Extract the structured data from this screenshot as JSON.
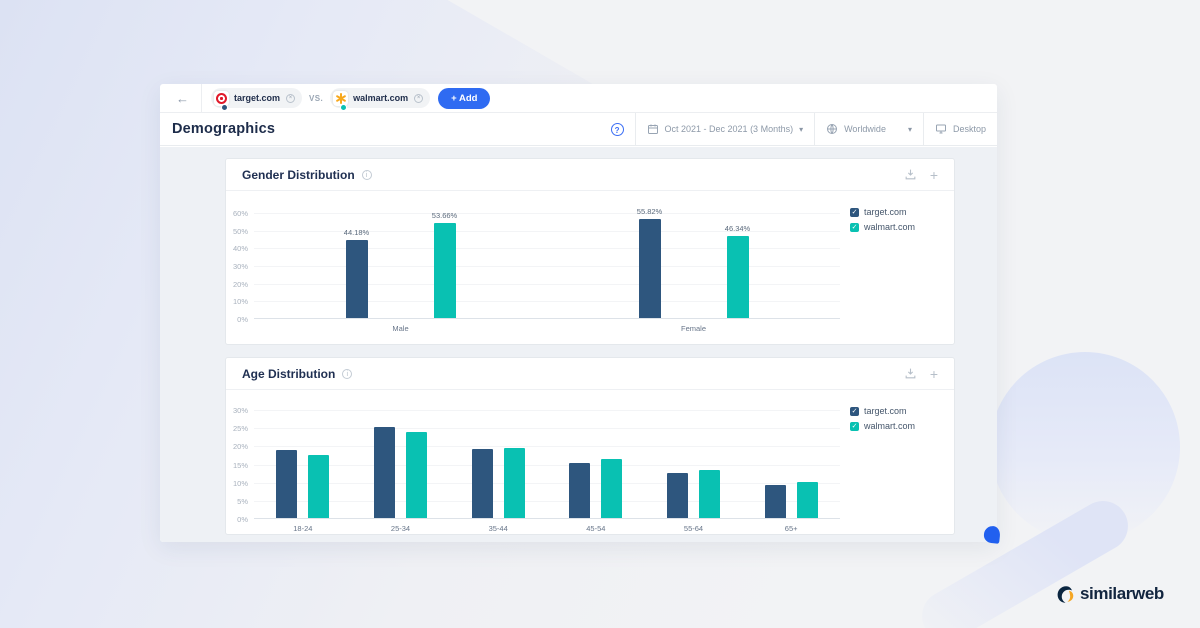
{
  "icons": {
    "back": "←",
    "chevron": "▾",
    "help": "?",
    "info": "i",
    "plus": "+",
    "check": "✓",
    "close": "×"
  },
  "colors": {
    "accent_blue": "#2f6bf2",
    "target_navy": "#2e567e",
    "walmart_teal": "#09c1b2"
  },
  "topbar": {
    "vs_label": "VS.",
    "add_button_label": "+ Add",
    "competitors": [
      {
        "name": "target.com",
        "brand": "target",
        "dot_color": "#2e567e"
      },
      {
        "name": "walmart.com",
        "brand": "walmart",
        "dot_color": "#09c1b2"
      }
    ]
  },
  "header": {
    "title": "Demographics",
    "filters": {
      "date_range": "Oct 2021 - Dec 2021 (3 Months)",
      "region": "Worldwide",
      "device": "Desktop"
    }
  },
  "chart_data": [
    {
      "id": "gender",
      "type": "bar",
      "title": "Gender Distribution",
      "categories": [
        "Male",
        "Female"
      ],
      "series": [
        {
          "name": "target.com",
          "color": "#2e567e",
          "values": [
            44.18,
            55.82
          ],
          "labels": [
            "44.18%",
            "55.82%"
          ]
        },
        {
          "name": "walmart.com",
          "color": "#09c1b2",
          "values": [
            53.66,
            46.34
          ],
          "labels": [
            "53.66%",
            "46.34%"
          ]
        }
      ],
      "ylim": [
        0,
        60
      ],
      "ytick_step": 10,
      "show_value_labels": true,
      "grid": true,
      "legend_position": "right"
    },
    {
      "id": "age",
      "type": "bar",
      "title": "Age Distribution",
      "categories": [
        "18-24",
        "25-34",
        "35-44",
        "45-54",
        "55-64",
        "65+"
      ],
      "series": [
        {
          "name": "target.com",
          "color": "#2e567e",
          "values": [
            18.6,
            25.0,
            19.0,
            15.2,
            12.3,
            9.2
          ]
        },
        {
          "name": "walmart.com",
          "color": "#09c1b2",
          "values": [
            17.3,
            23.8,
            19.3,
            16.2,
            13.1,
            10.0
          ]
        }
      ],
      "ylim": [
        0,
        30
      ],
      "ytick_step": 5,
      "show_value_labels": false,
      "grid": true,
      "legend_position": "right"
    }
  ],
  "footer": {
    "logo_text": "similarweb"
  }
}
